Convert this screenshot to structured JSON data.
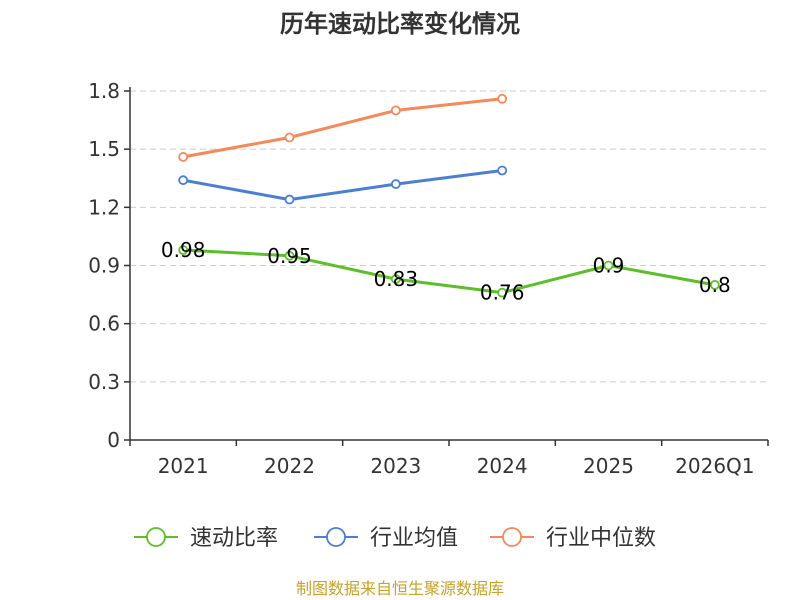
{
  "chart_data": {
    "type": "line",
    "title": "历年速动比率变化情况",
    "categories": [
      "2021",
      "2022",
      "2023",
      "2024",
      "2025",
      "2026Q1"
    ],
    "ylim": [
      0,
      1.8
    ],
    "yticks": [
      "0",
      "0.3",
      "0.6",
      "0.9",
      "1.2",
      "1.5",
      "1.8"
    ],
    "ytick_values": [
      0,
      0.3,
      0.6,
      0.9,
      1.2,
      1.5,
      1.8
    ],
    "grid": true,
    "legend_position": "bottom",
    "series": [
      {
        "name": "速动比率",
        "color": "#5cbf2a",
        "values": [
          0.98,
          0.95,
          0.83,
          0.76,
          0.9,
          0.8
        ],
        "labels": [
          "0.98",
          "0.95",
          "0.83",
          "0.76",
          "0.9",
          "0.8"
        ]
      },
      {
        "name": "行业均值",
        "color": "#4a7fd4",
        "values": [
          1.34,
          1.24,
          1.32,
          1.39,
          null,
          null
        ]
      },
      {
        "name": "行业中位数",
        "color": "#f5895a",
        "values": [
          1.46,
          1.56,
          1.7,
          1.76,
          null,
          null
        ]
      }
    ],
    "source": "制图数据来自恒生聚源数据库"
  }
}
